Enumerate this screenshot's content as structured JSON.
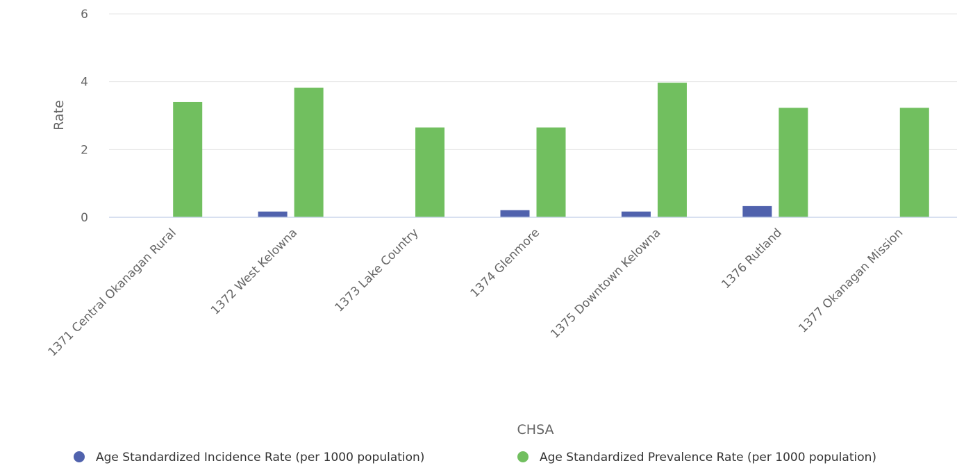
{
  "chart_data": {
    "type": "bar",
    "categories": [
      "1371 Central Okanagan Rural",
      "1372 West Kelowna",
      "1373 Lake Country",
      "1374 Glenmore",
      "1375 Downtown Kelowna",
      "1376 Rutland",
      "1377 Okanagan Mission"
    ],
    "series": [
      {
        "name": "Age Standardized Incidence Rate (per 1000 population)",
        "color": "#5062ad",
        "values": [
          0,
          0.17,
          0,
          0.21,
          0.17,
          0.33,
          0
        ]
      },
      {
        "name": "Age Standardized Prevalence Rate (per 1000 population)",
        "color": "#71bf5f",
        "values": [
          3.4,
          3.82,
          2.65,
          2.65,
          3.97,
          3.23,
          3.23
        ]
      }
    ],
    "xlabel": "CHSA",
    "ylabel": "Rate",
    "ylim": [
      0,
      6
    ],
    "yticks": [
      "0",
      "2",
      "4",
      "6"
    ],
    "grid": true,
    "legend_position": "bottom"
  }
}
